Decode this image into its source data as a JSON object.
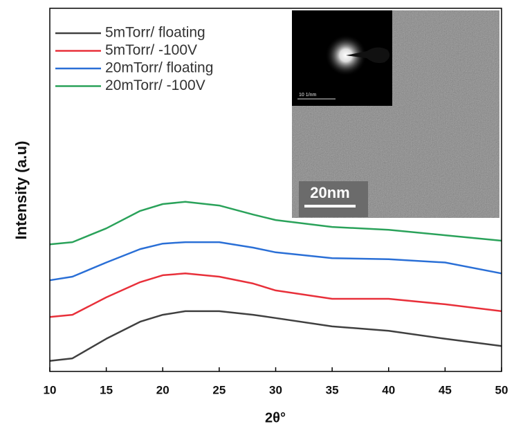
{
  "chart_data": {
    "type": "line",
    "xlabel": "2θ°",
    "ylabel": "Intensity (a.u)",
    "x": [
      10,
      12,
      15,
      18,
      20,
      22,
      25,
      28,
      30,
      35,
      40,
      45,
      50
    ],
    "series": [
      {
        "name": "5mTorr/ floating",
        "color": "#404040",
        "values": [
          2.9,
          3.6,
          9.0,
          13.7,
          15.6,
          16.6,
          16.6,
          15.6,
          14.7,
          12.4,
          11.2,
          9.0,
          7.0
        ]
      },
      {
        "name": "5mTorr/ -100V",
        "color": "#e8303a",
        "values": [
          15.0,
          15.6,
          20.4,
          24.6,
          26.5,
          27.0,
          26.1,
          24.2,
          22.3,
          20.0,
          20.0,
          18.5,
          16.6
        ]
      },
      {
        "name": "20mTorr/ floating",
        "color": "#2a6fd6",
        "values": [
          25.1,
          26.1,
          30.0,
          33.7,
          35.2,
          35.6,
          35.6,
          34.1,
          32.8,
          31.2,
          30.9,
          30.0,
          27.0
        ]
      },
      {
        "name": "20mTorr/ -100V",
        "color": "#2aa25a",
        "values": [
          35.0,
          35.6,
          39.4,
          44.2,
          46.1,
          46.7,
          45.7,
          43.2,
          41.7,
          39.8,
          39.0,
          37.5,
          36.0
        ]
      }
    ],
    "xlim": [
      10,
      50
    ],
    "xticks": [
      10,
      15,
      20,
      25,
      30,
      35,
      40,
      45,
      50
    ],
    "ylim": [
      0,
      100
    ],
    "legend": "upper left",
    "annotations": [
      "20nm",
      "10 1/nm"
    ]
  }
}
